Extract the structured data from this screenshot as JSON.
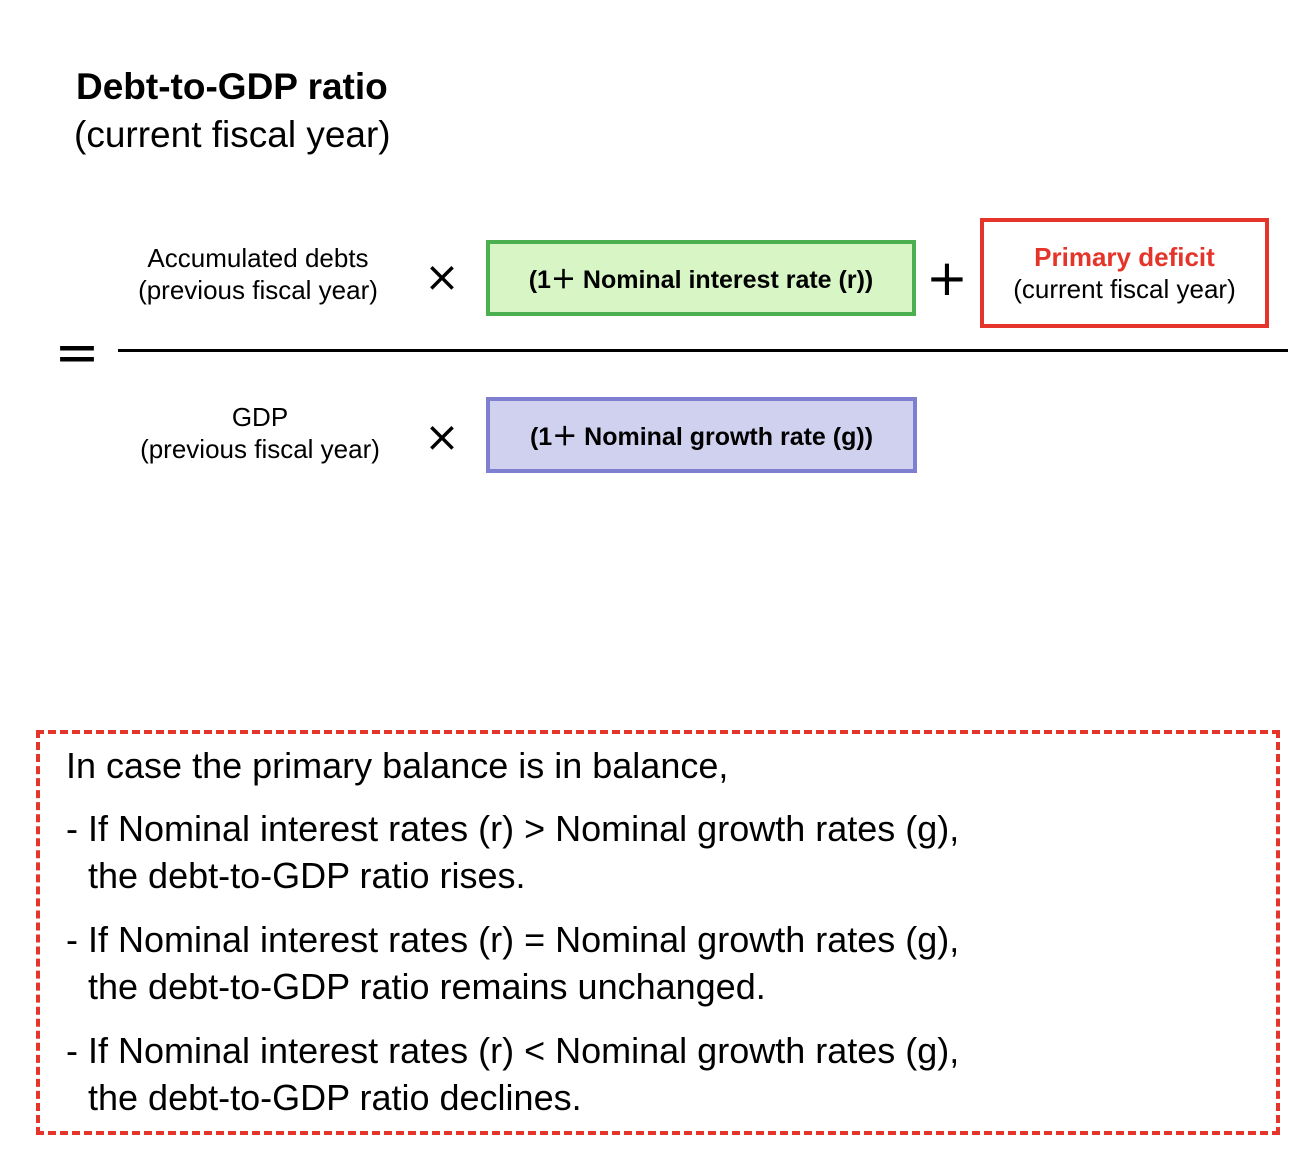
{
  "title": {
    "main": "Debt-to-GDP ratio",
    "sub": "(current fiscal year)"
  },
  "equation": {
    "equals_symbol": "=",
    "numerator": {
      "label_line1": "Accumulated debts",
      "label_line2": "(previous fiscal year)",
      "times_symbol": "×",
      "interest_box": "(1＋ Nominal interest rate (r))",
      "plus_symbol": "+",
      "deficit_title": "Primary deficit",
      "deficit_sub": "(current fiscal year)"
    },
    "denominator": {
      "label_line1": "GDP",
      "label_line2": "(previous fiscal year)",
      "times_symbol": "×",
      "growth_box": "(1＋ Nominal growth rate (g))"
    }
  },
  "note": {
    "intro": "In case the primary balance is in balance,",
    "case1_line1": "- If Nominal interest rates (r) > Nominal growth rates (g),",
    "case1_line2": "the debt-to-GDP ratio rises.",
    "case2_line1": "- If Nominal interest rates (r) = Nominal growth rates (g),",
    "case2_line2": "the debt-to-GDP ratio remains unchanged.",
    "case3_line1": "- If Nominal interest rates (r) < Nominal growth rates (g),",
    "case3_line2": "the debt-to-GDP ratio declines."
  },
  "colors": {
    "green_fill": "#d8f5c6",
    "green_border": "#4caf50",
    "purple_fill": "#d0d0ef",
    "purple_border": "#7f7fd1",
    "red_accent": "#e5352a"
  }
}
